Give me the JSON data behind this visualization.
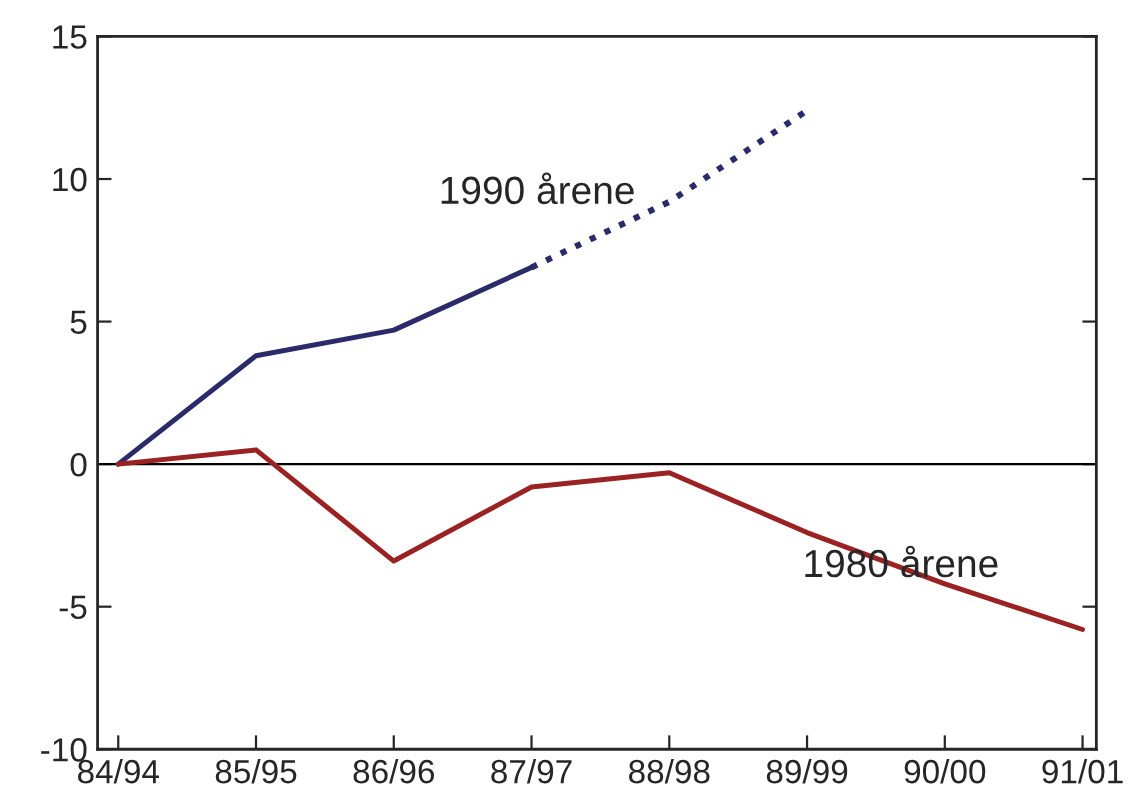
{
  "chart_data": {
    "type": "line",
    "categories": [
      "84/94",
      "85/95",
      "86/96",
      "87/97",
      "88/98",
      "89/99",
      "90/00",
      "91/01"
    ],
    "series": [
      {
        "name": "1990 årene",
        "color": "#2b2a6b",
        "values": [
          0,
          3.8,
          4.7,
          6.9,
          null,
          null,
          null,
          null
        ],
        "line_style": "solid"
      },
      {
        "color": "#2b2a6b",
        "values": [
          null,
          null,
          null,
          6.9,
          9.2,
          12.4,
          null,
          null
        ],
        "line_style": "dotted"
      },
      {
        "name": "1980 årene",
        "color": "#9b2222",
        "values": [
          0,
          0.5,
          -3.4,
          -0.8,
          -0.3,
          -2.4,
          -4.2,
          -5.8
        ],
        "line_style": "solid"
      }
    ],
    "ylim": [
      -10,
      15
    ],
    "yticks": [
      -10,
      -5,
      0,
      5,
      10,
      15
    ],
    "ref_lines": [
      {
        "axis": "y",
        "value": 0,
        "color": "#000000"
      }
    ],
    "grid": false,
    "legend": false,
    "marker": "none"
  }
}
